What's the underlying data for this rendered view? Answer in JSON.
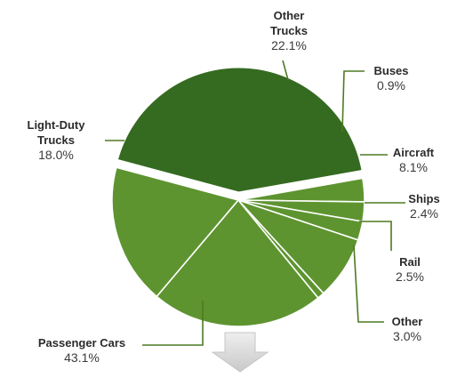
{
  "chart_data": {
    "type": "pie",
    "title": "",
    "slices": [
      {
        "label": "Passenger Cars",
        "display_label": "Passenger Cars",
        "value": 43.1,
        "value_label": "43.1%",
        "color": "#356b20",
        "exploded": true
      },
      {
        "label": "Other",
        "display_label": "Other",
        "value": 3.0,
        "value_label": "3.0%",
        "color": "#5e9430",
        "exploded": false
      },
      {
        "label": "Rail",
        "display_label": "Rail",
        "value": 2.5,
        "value_label": "2.5%",
        "color": "#5e9430",
        "exploded": false
      },
      {
        "label": "Ships",
        "display_label": "Ships",
        "value": 2.4,
        "value_label": "2.4%",
        "color": "#5e9430",
        "exploded": false
      },
      {
        "label": "Aircraft",
        "display_label": "Aircraft",
        "value": 8.1,
        "value_label": "8.1%",
        "color": "#5e9430",
        "exploded": false
      },
      {
        "label": "Buses",
        "display_label": "Buses",
        "value": 0.9,
        "value_label": "0.9%",
        "color": "#5e9430",
        "exploded": false
      },
      {
        "label": "Other Trucks",
        "display_label": "Other Trucks",
        "value": 22.1,
        "value_label": "22.1%",
        "color": "#5e9430",
        "exploded": false
      },
      {
        "label": "Light-Duty Trucks",
        "display_label": "Light-Duty Trucks",
        "value": 18.0,
        "value_label": "18.0%",
        "color": "#5e9430",
        "exploded": false
      }
    ],
    "colors": {
      "highlight": "#356b20",
      "base": "#5e9430",
      "separator": "#ffffff",
      "leader": "#4d7a22",
      "arrow": "#d6d6d6"
    },
    "arrow_icon": "down-arrow-icon",
    "legend": "none"
  }
}
